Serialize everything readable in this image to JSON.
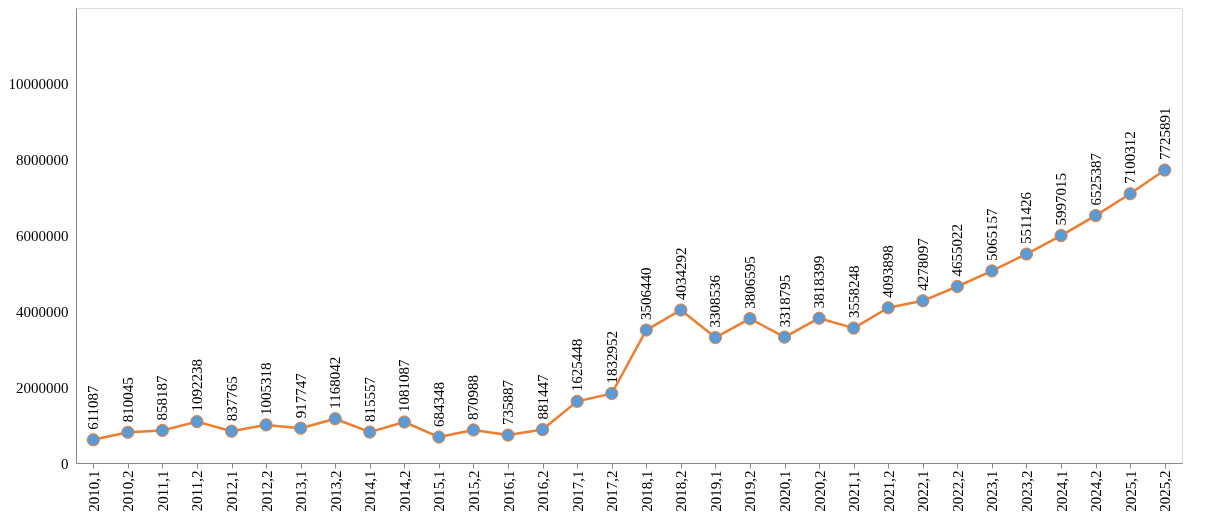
{
  "chart_data": {
    "type": "line",
    "categories": [
      "2010,1",
      "2010,2",
      "2011,1",
      "2011,2",
      "2012,1",
      "2012,2",
      "2013,1",
      "2013,2",
      "2014,1",
      "2014,2",
      "2015,1",
      "2015,2",
      "2016,1",
      "2016,2",
      "2017,1",
      "2017,2",
      "2018,1",
      "2018,2",
      "2019,1",
      "2019,2",
      "2020,1",
      "2020,2",
      "2021,1",
      "2021,2",
      "2022,1",
      "2022,2",
      "2023,1",
      "2023,2",
      "2024,1",
      "2024,2",
      "2025,1",
      "2025,2"
    ],
    "series": [
      {
        "color": "#ed7d31",
        "colors": [
          "#5b9bd5",
          "#5b9bd5",
          "#5b9bd5",
          "#5b9bd5",
          "#5b9bd5",
          "#5b9bd5",
          "#5b9bd5",
          "#5b9bd5",
          "#5b9bd5",
          "#5b9bd5",
          "#5b9bd5",
          "#5b9bd5",
          "#5b9bd5",
          "#5b9bd5",
          "#5b9bd5",
          "#5b9bd5",
          "#5b9bd5",
          "#5b9bd5",
          "#5b9bd5",
          "#5b9bd5",
          "#5b9bd5",
          "#5b9bd5",
          "#5b9bd5",
          "#5b9bd5",
          "#5b9bd5",
          "#5b9bd5",
          "#5b9bd5",
          "#5b9bd5",
          "#5b9bd5",
          "#5b9bd5",
          "#5b9bd5",
          "#5b9bd5"
        ],
        "values": [
          611087,
          810045,
          858187,
          1092238,
          837765,
          1005318,
          917747,
          1168042,
          815557,
          1081087,
          684348,
          870988,
          735887,
          881447,
          1625448,
          1832952,
          3506440,
          4034292,
          3308536,
          3806595,
          3318795,
          3818399,
          3558248,
          4093898,
          4278097,
          4655022,
          5065157,
          5511426,
          5997015,
          6525387,
          7100312,
          7725891
        ]
      }
    ],
    "ylim": [
      0,
      12000000
    ],
    "yticks": [
      0,
      2000000,
      4000000,
      6000000,
      8000000,
      10000000
    ],
    "data_labels": true,
    "grid": false,
    "marker": "circle",
    "line_style": "solid"
  }
}
